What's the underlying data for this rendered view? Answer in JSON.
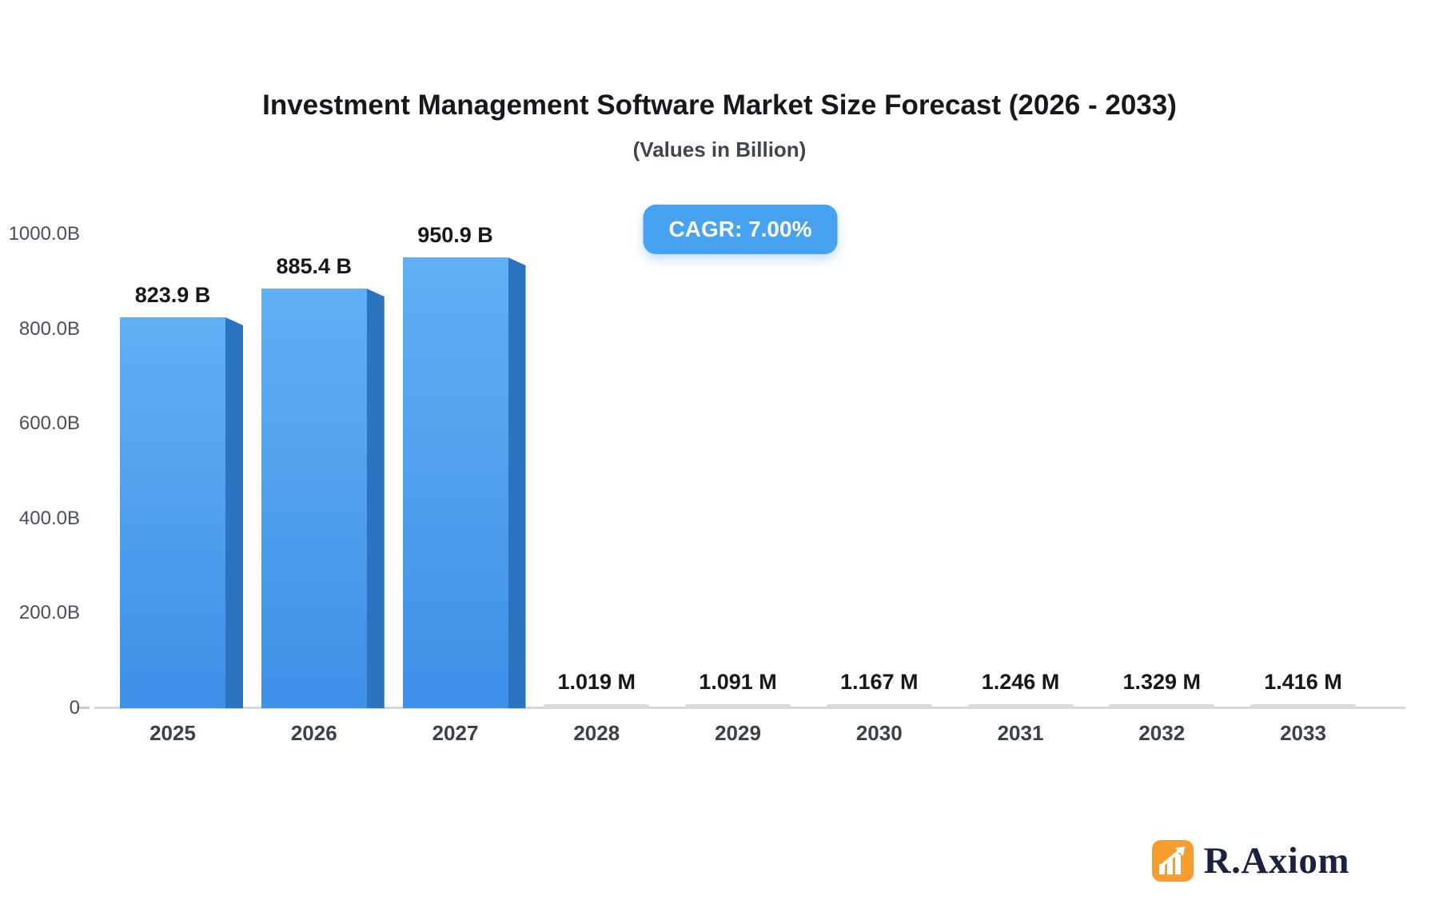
{
  "chart_data": {
    "type": "bar",
    "title": "Investment Management Software Market Size Forecast (2026 - 2033)",
    "subtitle": "(Values in Billion)",
    "annotation": "CAGR: 7.00%",
    "categories": [
      "2025",
      "2026",
      "2027",
      "2028",
      "2029",
      "2030",
      "2031",
      "2032",
      "2033"
    ],
    "points": [
      {
        "category": "2025",
        "value": 823.9,
        "unit": "B",
        "label": "823.9 B"
      },
      {
        "category": "2026",
        "value": 885.4,
        "unit": "B",
        "label": "885.4 B"
      },
      {
        "category": "2027",
        "value": 950.9,
        "unit": "B",
        "label": "950.9 B"
      },
      {
        "category": "2028",
        "value": 1.019,
        "unit": "M",
        "label": "1.019 M"
      },
      {
        "category": "2029",
        "value": 1.091,
        "unit": "M",
        "label": "1.091 M"
      },
      {
        "category": "2030",
        "value": 1.167,
        "unit": "M",
        "label": "1.167 M"
      },
      {
        "category": "2031",
        "value": 1.246,
        "unit": "M",
        "label": "1.246 M"
      },
      {
        "category": "2032",
        "value": 1.329,
        "unit": "M",
        "label": "1.329 M"
      },
      {
        "category": "2033",
        "value": 1.416,
        "unit": "M",
        "label": "1.416 M"
      }
    ],
    "y_axis": {
      "min": 0,
      "max": 1000,
      "ticks": [
        {
          "label": "1000.0B",
          "value": 1000
        },
        {
          "label": "800.0B",
          "value": 800
        },
        {
          "label": "600.0B",
          "value": 600
        },
        {
          "label": "400.0B",
          "value": 400
        },
        {
          "label": "200.0B",
          "value": 200
        },
        {
          "label": "0",
          "value": 0
        }
      ]
    },
    "grid": false,
    "legend_position": "none",
    "colors": {
      "bar_front_top": "#61aff4",
      "bar_front_bottom": "#3d90e7",
      "bar_side": "#2b74c2",
      "flat_bar": "#d8dbde",
      "badge_background": "#47a2ef",
      "badge_text": "#ffffff",
      "axis_text": "#4a505a",
      "title_text": "#16181d"
    }
  },
  "logo": {
    "text": "R.Axiom",
    "icon": "bar-chart-arrow-icon",
    "icon_color": "#f59e2f",
    "text_color": "#1b2140"
  }
}
